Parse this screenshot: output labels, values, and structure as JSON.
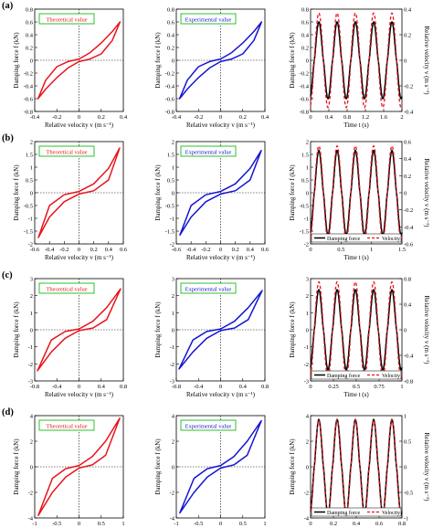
{
  "rows": [
    {
      "label": "(a)",
      "loop_xlim": [
        -0.4,
        0.4
      ],
      "loop_xticks": [
        "-0.4",
        "-0.2",
        "0",
        "0.2",
        "0.4"
      ],
      "loop_ylim": [
        -0.8,
        0.8
      ],
      "loop_yticks": [
        "-0.8",
        "-0.6",
        "-0.4",
        "-0.2",
        "0",
        "0.2",
        "0.4",
        "0.6",
        "0.8"
      ],
      "loop_yvals": [
        -0.8,
        -0.6,
        -0.4,
        -0.2,
        0,
        0.2,
        0.4,
        0.6,
        0.8
      ],
      "loop_xvals": [
        -0.4,
        -0.2,
        0,
        0.2,
        0.4
      ],
      "time_xticks": [
        "0",
        "0.4",
        "0.8",
        "1.2",
        "1.6",
        "2"
      ],
      "time_xvals": [
        0,
        0.4,
        0.8,
        1.2,
        1.6,
        2.0
      ],
      "time_xlim": [
        0,
        2.0
      ],
      "time_ylim": [
        -0.8,
        0.8
      ],
      "time_yticks": [
        "-0.8",
        "-0.6",
        "-0.4",
        "-0.2",
        "0",
        "0.2",
        "0.4",
        "0.6",
        "0.8"
      ],
      "time_yvals": [
        -0.8,
        -0.6,
        -0.4,
        -0.2,
        0,
        0.2,
        0.4,
        0.6,
        0.8
      ],
      "right_ylim": [
        -0.4,
        0.4
      ],
      "right_yticks": [
        "-0.4",
        "-0.2",
        "0",
        "0.2",
        "0.4"
      ],
      "right_yvals": [
        -0.4,
        -0.2,
        0,
        0.2,
        0.4
      ],
      "right_ylabel": "Relative velocity v (m s⁻¹)",
      "time_xlabel": "Time t (s)",
      "legend": [
        "Damping force",
        "Velocity"
      ],
      "legend_visible": false
    },
    {
      "label": "(b)",
      "loop_xlim": [
        -0.6,
        0.6
      ],
      "loop_xticks": [
        "-0.6",
        "-0.4",
        "-0.2",
        "0",
        "0.2",
        "0.4",
        "0.6"
      ],
      "loop_xvals": [
        -0.6,
        -0.4,
        -0.2,
        0,
        0.2,
        0.4,
        0.6
      ],
      "loop_ylim": [
        -2,
        2
      ],
      "loop_yticks": [
        "-2",
        "-1.5",
        "-1",
        "-0.5",
        "0",
        "0.5",
        "1",
        "1.5",
        "2"
      ],
      "loop_yvals": [
        -2,
        -1.5,
        -1,
        -0.5,
        0,
        0.5,
        1,
        1.5,
        2
      ],
      "time_xticks": [
        "0",
        "0.5",
        "1",
        "1.5"
      ],
      "time_xvals": [
        0,
        0.5,
        1.0,
        1.5
      ],
      "time_xlim": [
        0,
        1.5
      ],
      "time_ylim": [
        -2,
        2
      ],
      "time_yticks": [
        "-2",
        "-1.5",
        "-1",
        "-0.5",
        "0",
        "0.5",
        "1",
        "1.5",
        "2"
      ],
      "time_yvals": [
        -2,
        -1.5,
        -1,
        -0.5,
        0,
        0.5,
        1,
        1.5,
        2
      ],
      "right_ylim": [
        -0.6,
        0.6
      ],
      "right_yticks": [
        "-0.6",
        "-0.4",
        "-0.2",
        "0",
        "0.2",
        "0.4",
        "0.6"
      ],
      "right_yvals": [
        -0.6,
        -0.4,
        -0.2,
        0,
        0.2,
        0.4,
        0.6
      ],
      "right_ylabel": "Relative velocity v (m s⁻¹)",
      "time_xlabel": "Time t (s)",
      "legend": [
        "Damping force",
        "Velocity"
      ],
      "legend_visible": true
    },
    {
      "label": "(c)",
      "loop_xlim": [
        -0.8,
        0.8
      ],
      "loop_xticks": [
        "-0.8",
        "-0.4",
        "0",
        "0.4",
        "0.8"
      ],
      "loop_xvals": [
        -0.8,
        -0.4,
        0,
        0.4,
        0.8
      ],
      "loop_ylim": [
        -3,
        3
      ],
      "loop_yticks": [
        "-3",
        "-2",
        "-1",
        "0",
        "1",
        "2",
        "3"
      ],
      "loop_yvals": [
        -3,
        -2,
        -1,
        0,
        1,
        2,
        3
      ],
      "time_xticks": [
        "0",
        "0.25",
        "0.5",
        "0.75",
        "1"
      ],
      "time_xvals": [
        0,
        0.25,
        0.5,
        0.75,
        1.0
      ],
      "time_xlim": [
        0,
        1.0
      ],
      "time_ylim": [
        -3,
        3
      ],
      "time_yticks": [
        "-3",
        "-2",
        "-1",
        "0",
        "1",
        "2",
        "3"
      ],
      "time_yvals": [
        -3,
        -2,
        -1,
        0,
        1,
        2,
        3
      ],
      "right_ylim": [
        -0.8,
        0.8
      ],
      "right_yticks": [
        "-0.8",
        "-0.4",
        "0",
        "0.4",
        "0.8"
      ],
      "right_yvals": [
        -0.8,
        -0.4,
        0,
        0.4,
        0.8
      ],
      "right_ylabel": "Relative velocity v (m s⁻¹)",
      "time_xlabel": "Time t (s)",
      "legend": [
        "Damping force",
        "Velocity"
      ],
      "legend_visible": true
    },
    {
      "label": "(d)",
      "loop_xlim": [
        -1,
        1
      ],
      "loop_xticks": [
        "-1",
        "-0.5",
        "0",
        "0.5",
        "1"
      ],
      "loop_xvals": [
        -1,
        -0.5,
        0,
        0.5,
        1
      ],
      "loop_ylim": [
        -4,
        4
      ],
      "loop_yticks": [
        "-4",
        "-2",
        "0",
        "2",
        "4"
      ],
      "loop_yvals": [
        -4,
        -2,
        0,
        2,
        4
      ],
      "time_xticks": [
        "0",
        "0.2",
        "0.4",
        "0.6",
        "0.8"
      ],
      "time_xvals": [
        0,
        0.2,
        0.4,
        0.6,
        0.8
      ],
      "time_xlim": [
        0,
        0.8
      ],
      "time_ylim": [
        -4,
        4
      ],
      "time_yticks": [
        "-4",
        "-2",
        "0",
        "2",
        "4"
      ],
      "time_yvals": [
        -4,
        -2,
        0,
        2,
        4
      ],
      "right_ylim": [
        -1,
        1
      ],
      "right_yticks": [
        "-1",
        "-0.5",
        "0",
        "0.5",
        "1"
      ],
      "right_yvals": [
        -1,
        -0.5,
        0,
        0.5,
        1
      ],
      "right_ylabel": "Relative velocity v (m s⁻¹)",
      "time_xlabel": "Time t (s)",
      "legend": [
        "Damping force",
        "Velocity"
      ],
      "legend_visible": true
    }
  ],
  "labels": {
    "theoretical": "Theoretical value",
    "experimental": "Experimental value",
    "loop_xlabel": "Relative velocity v (m s⁻¹)",
    "loop_ylabel": "Damping force f (kN)",
    "time_ylabel": "Damping force f (kN)"
  },
  "colors": {
    "theoretical": "#e8141c",
    "experimental": "#1414d2",
    "force": "#000000",
    "velocity": "#e8141c",
    "label_box": "#2ec02e"
  },
  "chart_data": [
    {
      "type": "line",
      "panel": "(a) left",
      "title": "Theoretical value",
      "xlabel": "Relative velocity v (m s⁻¹)",
      "ylabel": "Damping force f (kN)",
      "xlim": [
        -0.4,
        0.4
      ],
      "ylim": [
        -0.8,
        0.8
      ],
      "series": [
        {
          "name": "Theoretical value",
          "x": [
            -0.37,
            -0.3,
            -0.2,
            -0.1,
            0,
            0.1,
            0.2,
            0.3,
            0.37
          ],
          "y_upper": [
            -0.6,
            -0.31,
            -0.1,
            -0.02,
            0.02,
            0.12,
            0.27,
            0.45,
            0.6
          ],
          "y_lower": [
            -0.6,
            -0.45,
            -0.27,
            -0.12,
            -0.02,
            0.02,
            0.1,
            0.31,
            0.6
          ]
        }
      ]
    },
    {
      "type": "line",
      "panel": "(a) middle",
      "title": "Experimental value",
      "xlabel": "Relative velocity v (m s⁻¹)",
      "ylabel": "Damping force f (kN)",
      "xlim": [
        -0.4,
        0.4
      ],
      "ylim": [
        -0.8,
        0.8
      ],
      "series": [
        {
          "name": "Experimental value",
          "x": [
            -0.37,
            -0.3,
            -0.2,
            -0.1,
            0,
            0.1,
            0.2,
            0.3,
            0.37
          ],
          "y_upper": [
            -0.6,
            -0.31,
            -0.1,
            -0.02,
            0.02,
            0.12,
            0.27,
            0.45,
            0.6
          ],
          "y_lower": [
            -0.6,
            -0.45,
            -0.27,
            -0.12,
            -0.02,
            0.02,
            0.1,
            0.31,
            0.6
          ]
        }
      ]
    },
    {
      "type": "line",
      "panel": "(a) right",
      "xlabel": "Time t (s)",
      "ylabel": "Damping force f (kN)",
      "ylabel_right": "Relative velocity v (m s⁻¹)",
      "xlim": [
        0,
        2.0
      ],
      "ylim": [
        -0.8,
        0.8
      ],
      "ylim_right": [
        -0.4,
        0.4
      ],
      "series": [
        {
          "name": "Damping force",
          "cycles": 5,
          "amplitude": 0.6
        },
        {
          "name": "Velocity",
          "cycles": 5,
          "amplitude": 0.37
        }
      ]
    },
    {
      "type": "line",
      "panel": "(b) left",
      "title": "Theoretical value",
      "xlim": [
        -0.6,
        0.6
      ],
      "ylim": [
        -2,
        2
      ],
      "series": [
        {
          "name": "Theoretical value",
          "x": [
            -0.55,
            -0.4,
            -0.2,
            0,
            0.2,
            0.4,
            0.55
          ],
          "y_upper": [
            -1.75,
            -0.5,
            -0.08,
            0.05,
            0.35,
            0.95,
            1.75
          ],
          "y_lower": [
            -1.75,
            -0.95,
            -0.35,
            -0.05,
            0.08,
            0.5,
            1.75
          ]
        }
      ]
    },
    {
      "type": "line",
      "panel": "(b) middle",
      "title": "Experimental value",
      "xlim": [
        -0.6,
        0.6
      ],
      "ylim": [
        -2,
        2
      ],
      "series": [
        {
          "name": "Experimental value",
          "x": [
            -0.55,
            -0.4,
            -0.2,
            0,
            0.2,
            0.4,
            0.55
          ],
          "y_upper": [
            -1.65,
            -0.5,
            -0.08,
            0.05,
            0.35,
            0.95,
            1.65
          ],
          "y_lower": [
            -1.65,
            -0.95,
            -0.35,
            -0.05,
            0.08,
            0.5,
            1.65
          ]
        }
      ]
    },
    {
      "type": "line",
      "panel": "(b) right",
      "xlabel": "Time t (s)",
      "xlim": [
        0,
        1.5
      ],
      "ylim": [
        -2,
        2
      ],
      "ylim_right": [
        -0.6,
        0.6
      ],
      "series": [
        {
          "name": "Damping force",
          "cycles": 5,
          "amplitude": 1.65
        },
        {
          "name": "Velocity",
          "cycles": 5,
          "amplitude": 0.55
        }
      ]
    },
    {
      "type": "line",
      "panel": "(c) left",
      "title": "Theoretical value",
      "xlim": [
        -0.8,
        0.8
      ],
      "ylim": [
        -3,
        3
      ],
      "series": [
        {
          "name": "Theoretical value",
          "x": [
            -0.75,
            -0.5,
            -0.25,
            0,
            0.25,
            0.5,
            0.75
          ],
          "y_upper": [
            -2.4,
            -0.6,
            -0.1,
            0.05,
            0.5,
            1.3,
            2.4
          ],
          "y_lower": [
            -2.4,
            -1.3,
            -0.5,
            -0.05,
            0.1,
            0.6,
            2.4
          ]
        }
      ]
    },
    {
      "type": "line",
      "panel": "(c) middle",
      "title": "Experimental value",
      "xlim": [
        -0.8,
        0.8
      ],
      "ylim": [
        -3,
        3
      ],
      "series": [
        {
          "name": "Experimental value",
          "x": [
            -0.75,
            -0.5,
            -0.25,
            0,
            0.25,
            0.5,
            0.75
          ],
          "y_upper": [
            -2.3,
            -0.6,
            -0.1,
            0.05,
            0.5,
            1.3,
            2.3
          ],
          "y_lower": [
            -2.3,
            -1.3,
            -0.5,
            -0.05,
            0.1,
            0.6,
            2.3
          ]
        }
      ]
    },
    {
      "type": "line",
      "panel": "(c) right",
      "xlabel": "Time t (s)",
      "xlim": [
        0,
        1.0
      ],
      "ylim": [
        -3,
        3
      ],
      "ylim_right": [
        -0.8,
        0.8
      ],
      "series": [
        {
          "name": "Damping force",
          "cycles": 5,
          "amplitude": 2.35
        },
        {
          "name": "Velocity",
          "cycles": 5,
          "amplitude": 0.75
        }
      ]
    },
    {
      "type": "line",
      "panel": "(d) left",
      "title": "Theoretical value",
      "xlim": [
        -1,
        1
      ],
      "ylim": [
        -4,
        4
      ],
      "series": [
        {
          "name": "Theoretical value",
          "x": [
            -0.92,
            -0.6,
            -0.3,
            0,
            0.3,
            0.6,
            0.92
          ],
          "y_upper": [
            -3.8,
            -0.9,
            -0.15,
            0.1,
            0.8,
            2.0,
            3.8
          ],
          "y_lower": [
            -3.8,
            -2.0,
            -0.8,
            -0.1,
            0.15,
            0.9,
            3.8
          ]
        }
      ]
    },
    {
      "type": "line",
      "panel": "(d) middle",
      "title": "Experimental value",
      "xlim": [
        -1,
        1
      ],
      "ylim": [
        -4,
        4
      ],
      "series": [
        {
          "name": "Experimental value",
          "x": [
            -0.92,
            -0.6,
            -0.3,
            0,
            0.3,
            0.6,
            0.92
          ],
          "y_upper": [
            -3.6,
            -0.9,
            -0.15,
            0.1,
            0.8,
            2.0,
            3.6
          ],
          "y_lower": [
            -3.6,
            -2.0,
            -0.8,
            -0.1,
            0.15,
            0.9,
            3.6
          ]
        }
      ]
    },
    {
      "type": "line",
      "panel": "(d) right",
      "xlabel": "Time t (s)",
      "xlim": [
        0,
        0.8
      ],
      "ylim": [
        -4,
        4
      ],
      "ylim_right": [
        -1,
        1
      ],
      "series": [
        {
          "name": "Damping force",
          "cycles": 5,
          "amplitude": 3.7
        },
        {
          "name": "Velocity",
          "cycles": 5,
          "amplitude": 0.92
        }
      ]
    }
  ]
}
